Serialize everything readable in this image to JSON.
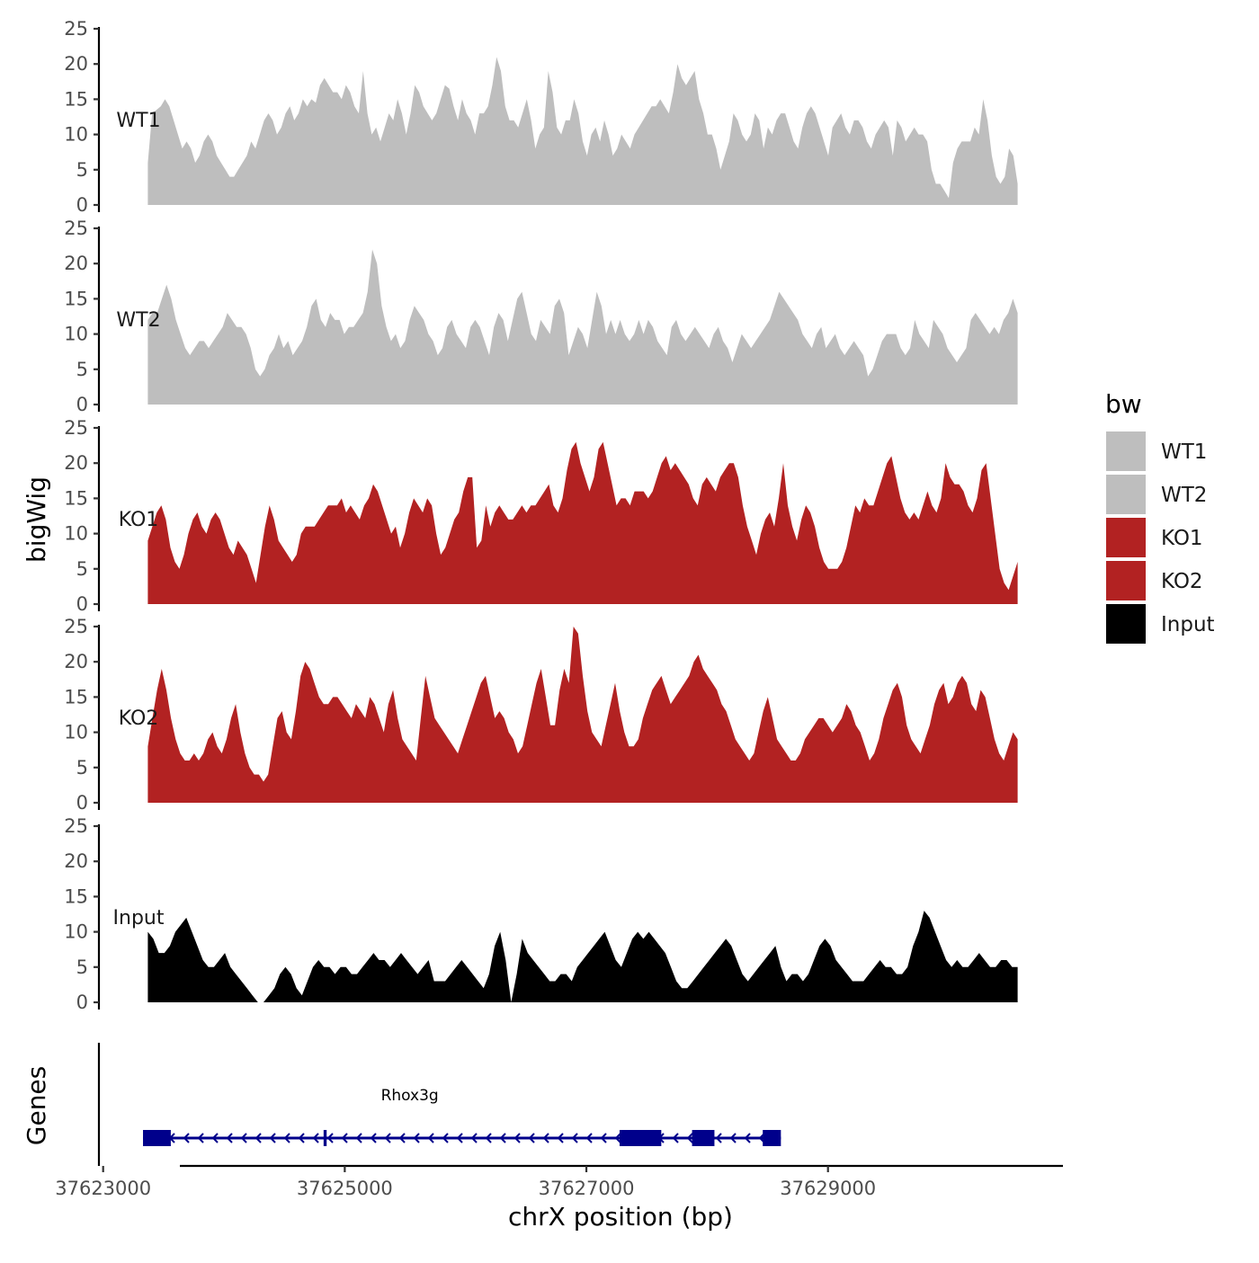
{
  "chart_data": {
    "type": "area",
    "ylabel": "bigWig",
    "genes_label": "Genes",
    "xlabel": "chrX position (bp)",
    "legend_title": "bw",
    "xlim": [
      37622980,
      37630930
    ],
    "ylim": [
      0,
      25
    ],
    "xticks": [
      37623000,
      37625000,
      37627000,
      37629000
    ],
    "xtick_labels": [
      "37623000",
      "37625000",
      "37627000",
      "37629000"
    ],
    "yticks": [
      0,
      5,
      10,
      15,
      20,
      25
    ],
    "ytick_labels": [
      "0",
      "5",
      "10",
      "15",
      "20",
      "25"
    ],
    "x_start": 37623370,
    "x_end": 37630570,
    "tracks": [
      {
        "name": "WT1",
        "color": "#bebebe",
        "values": [
          6,
          13,
          13.5,
          14,
          15,
          14,
          12,
          10,
          8,
          9,
          8,
          6,
          7,
          9,
          10,
          9,
          7,
          6,
          5,
          4,
          4,
          5,
          6,
          7,
          9,
          8,
          10,
          12,
          13,
          12,
          10,
          11,
          13,
          14,
          12,
          13,
          15,
          14,
          15,
          14.5,
          17,
          18,
          17,
          16,
          16,
          15,
          17,
          16,
          14,
          13,
          19,
          13,
          10,
          11,
          9,
          11,
          13,
          12,
          15,
          13,
          10,
          13,
          17,
          16,
          14,
          13,
          12,
          13,
          15,
          17,
          16.5,
          14,
          12,
          15,
          13,
          12,
          10,
          13,
          13,
          14,
          17,
          21,
          19,
          14,
          12,
          12,
          11,
          13,
          15,
          12,
          8,
          10,
          11,
          19,
          16,
          11,
          10,
          12,
          12,
          15,
          13,
          9,
          7,
          10,
          11,
          9,
          12,
          10,
          7,
          8,
          10,
          9,
          8,
          10,
          11,
          12,
          13,
          14,
          14,
          15,
          14,
          13,
          16,
          20,
          18,
          17,
          18,
          19,
          15,
          13,
          10,
          10,
          8,
          5,
          7,
          9,
          13,
          12,
          10,
          9,
          10,
          13,
          12,
          8,
          11,
          10,
          12,
          13,
          13,
          11,
          9,
          8,
          11,
          13,
          14,
          13,
          11,
          9,
          7,
          11,
          12,
          13,
          11,
          10,
          12,
          12,
          11,
          9,
          8,
          10,
          11,
          12,
          11,
          7,
          12,
          11,
          9,
          10,
          11,
          10,
          10,
          9,
          5,
          3,
          3,
          2,
          1,
          6,
          8,
          9,
          9,
          9,
          11,
          10,
          15,
          12,
          7,
          4,
          3,
          4,
          8,
          7,
          3
        ]
      },
      {
        "name": "WT2",
        "color": "#bebebe",
        "values": [
          12,
          13,
          13,
          15,
          17,
          15,
          12,
          10,
          8,
          7,
          8,
          9,
          9,
          8,
          9,
          10,
          11,
          13,
          12,
          11,
          11,
          10,
          8,
          5,
          4,
          5,
          7,
          8,
          10,
          8,
          9,
          7,
          8,
          9,
          11,
          14,
          15,
          12,
          11,
          13,
          12,
          12,
          10,
          11,
          11,
          12,
          13,
          16,
          22,
          20,
          14,
          11,
          9,
          10,
          8,
          9,
          12,
          14,
          13,
          12,
          10,
          9,
          7,
          8,
          11,
          12,
          10,
          9,
          8,
          11,
          12,
          11,
          9,
          7,
          11,
          13,
          12,
          9,
          12,
          15,
          16,
          13,
          10,
          9,
          12,
          11,
          10,
          14,
          15,
          13,
          7,
          9,
          11,
          10,
          8,
          12,
          16,
          14,
          10,
          12,
          10,
          12,
          10,
          9,
          10,
          12,
          10,
          12,
          11,
          9,
          8,
          7,
          11,
          12,
          10,
          9,
          10,
          11,
          10,
          9,
          8,
          10,
          11,
          9,
          8,
          6,
          8,
          10,
          9,
          8,
          9,
          10,
          11,
          12,
          14,
          16,
          15,
          14,
          13,
          12,
          10,
          9,
          8,
          10,
          11,
          8,
          9,
          10,
          8,
          7,
          8,
          9,
          8,
          7,
          4,
          5,
          7,
          9,
          10,
          10,
          10,
          8,
          7,
          8,
          12,
          10,
          9,
          8,
          12,
          11,
          10,
          8,
          7,
          6,
          7,
          8,
          12,
          13,
          12,
          11,
          10,
          11,
          10,
          12,
          13,
          15,
          13
        ]
      },
      {
        "name": "KO1",
        "color": "#b22222",
        "values": [
          9,
          11,
          13,
          14,
          12,
          8,
          6,
          5,
          7,
          10,
          12,
          13,
          11,
          10,
          12,
          13,
          12,
          10,
          8,
          7,
          9,
          8,
          7,
          5,
          3,
          7,
          11,
          14,
          12,
          9,
          8,
          7,
          6,
          7,
          10,
          11,
          11,
          11,
          12,
          13,
          14,
          14,
          14,
          15,
          13,
          14,
          13,
          12,
          14,
          15,
          17,
          16,
          14,
          12,
          10,
          11,
          8,
          10,
          13,
          15,
          14,
          13,
          15,
          14,
          10,
          7,
          8,
          10,
          12,
          13,
          16,
          18,
          18,
          8,
          9,
          14,
          11,
          13,
          14,
          13,
          12,
          12,
          13,
          14,
          13,
          14,
          14,
          15,
          16,
          17,
          14,
          13,
          15,
          19,
          22,
          23,
          20,
          18,
          16,
          18,
          22,
          23,
          20,
          17,
          14,
          15,
          15,
          14,
          16,
          16,
          16,
          15,
          16,
          18,
          20,
          21,
          19,
          20,
          19,
          18,
          17,
          15,
          14,
          17,
          18,
          17,
          16,
          18,
          19,
          20,
          20,
          18,
          14,
          11,
          9,
          7,
          10,
          12,
          13,
          11,
          15,
          20,
          14,
          11,
          9,
          12,
          14,
          13,
          11,
          8,
          6,
          5,
          5,
          5,
          6,
          8,
          11,
          14,
          13,
          15,
          14,
          14,
          16,
          18,
          20,
          21,
          18,
          15,
          13,
          12,
          13,
          12,
          14,
          16,
          14,
          13,
          15,
          20,
          18,
          17,
          17,
          16,
          14,
          13,
          15,
          19,
          20,
          15,
          10,
          5,
          3,
          2,
          4,
          6
        ]
      },
      {
        "name": "KO2",
        "color": "#b22222",
        "values": [
          8,
          12,
          16,
          19,
          16,
          12,
          9,
          7,
          6,
          6,
          7,
          6,
          7,
          9,
          10,
          8,
          7,
          9,
          12,
          14,
          10,
          7,
          5,
          4,
          4,
          3,
          4,
          8,
          12,
          13,
          10,
          9,
          13,
          18,
          20,
          19,
          17,
          15,
          14,
          14,
          15,
          15,
          14,
          13,
          12,
          14,
          13,
          12,
          15,
          14,
          12,
          10,
          14,
          16,
          12,
          9,
          8,
          7,
          6,
          12,
          18,
          15,
          12,
          11,
          10,
          9,
          8,
          7,
          9,
          11,
          13,
          15,
          17,
          18,
          15,
          12,
          13,
          12,
          10,
          9,
          7,
          8,
          11,
          14,
          17,
          19,
          15,
          11,
          11,
          16,
          19,
          17,
          25,
          24,
          18,
          13,
          10,
          9,
          8,
          11,
          14,
          17,
          13,
          10,
          8,
          8,
          9,
          12,
          14,
          16,
          17,
          18,
          16,
          14,
          15,
          16,
          17,
          18,
          20,
          21,
          19,
          18,
          17,
          16,
          14,
          13,
          11,
          9,
          8,
          7,
          6,
          7,
          10,
          13,
          15,
          12,
          9,
          8,
          7,
          6,
          6,
          7,
          9,
          10,
          11,
          12,
          12,
          11,
          10,
          11,
          12,
          14,
          13,
          11,
          10,
          8,
          6,
          7,
          9,
          12,
          14,
          16,
          17,
          15,
          11,
          9,
          8,
          7,
          9,
          11,
          14,
          16,
          17,
          14,
          15,
          17,
          18,
          17,
          14,
          13,
          16,
          15,
          12,
          9,
          7,
          6,
          8,
          10,
          9
        ]
      },
      {
        "name": "Input",
        "color": "#000000",
        "values": [
          10,
          9,
          7,
          7,
          8,
          10,
          11,
          12,
          10,
          8,
          6,
          5,
          5,
          6,
          7,
          5,
          4,
          3,
          2,
          1,
          0,
          0,
          1,
          2,
          4,
          5,
          4,
          2,
          1,
          3,
          5,
          6,
          5,
          5,
          4,
          5,
          5,
          4,
          4,
          5,
          6,
          7,
          6,
          6,
          5,
          6,
          7,
          6,
          5,
          4,
          5,
          6,
          3,
          3,
          3,
          4,
          5,
          6,
          5,
          4,
          3,
          2,
          4,
          8,
          10,
          6,
          0,
          4,
          9,
          7,
          6,
          5,
          4,
          3,
          3,
          4,
          4,
          3,
          5,
          6,
          7,
          8,
          9,
          10,
          8,
          6,
          5,
          7,
          9,
          10,
          9,
          10,
          9,
          8,
          7,
          5,
          3,
          2,
          2,
          3,
          4,
          5,
          6,
          7,
          8,
          9,
          8,
          6,
          4,
          3,
          4,
          5,
          6,
          7,
          8,
          5,
          3,
          4,
          4,
          3,
          4,
          6,
          8,
          9,
          8,
          6,
          5,
          4,
          3,
          3,
          3,
          4,
          5,
          6,
          5,
          5,
          4,
          4,
          5,
          8,
          10,
          13,
          12,
          10,
          8,
          6,
          5,
          6,
          5,
          5,
          6,
          7,
          6,
          5,
          5,
          6,
          6,
          5,
          5
        ]
      }
    ],
    "genes": [
      {
        "name": "Rhox3g",
        "start": 37623330,
        "end": 37628610,
        "strand": "-",
        "color": "#00008b",
        "exons": [
          [
            37623330,
            37623560
          ],
          [
            37624825,
            37624850
          ],
          [
            37627275,
            37627620
          ],
          [
            37627875,
            37628060
          ],
          [
            37628460,
            37628610
          ]
        ]
      }
    ]
  }
}
